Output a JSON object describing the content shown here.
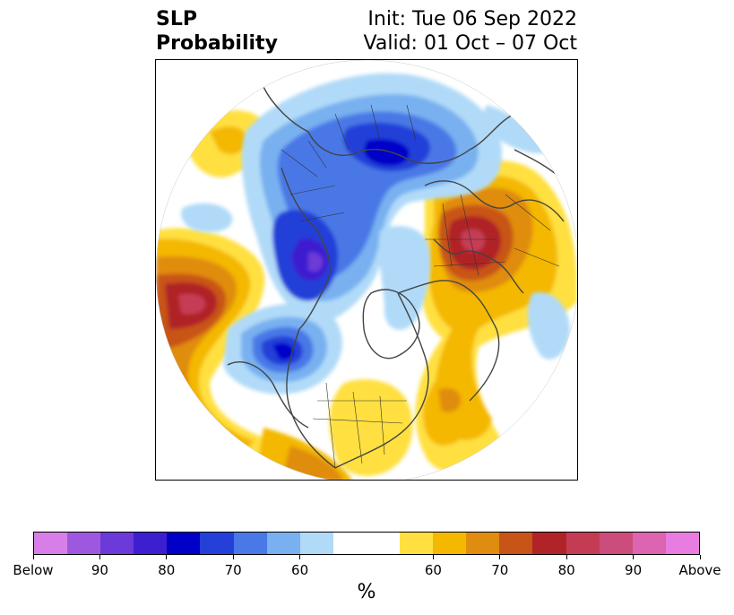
{
  "title": {
    "left_line1": "SLP",
    "left_line2": "Probability",
    "right_line1": "Init: Tue 06 Sep 2022",
    "right_line2": "Valid: 01 Oct – 07 Oct"
  },
  "map": {
    "projection": "polar stereographic (north pole)",
    "field": "SLP probability anomaly",
    "colors": {
      "ocean_bg": "#ffffff",
      "coast": "#444444",
      "borders": "#333333"
    }
  },
  "colorbar": {
    "unit": "%",
    "segments": [
      "#d87ee8",
      "#9e58e0",
      "#6c3ad8",
      "#3d1fd0",
      "#0000c8",
      "#2440d8",
      "#4a78e6",
      "#78b0f0",
      "#b0daf8",
      "#ffffff",
      "#ffe040",
      "#f4b800",
      "#e08c10",
      "#c85418",
      "#b02428",
      "#c43c54",
      "#cc4c7c",
      "#dc64b0",
      "#e87ce0"
    ],
    "tick_labels": [
      "Below",
      "90",
      "80",
      "70",
      "60",
      "60",
      "70",
      "80",
      "90",
      "Above"
    ]
  }
}
